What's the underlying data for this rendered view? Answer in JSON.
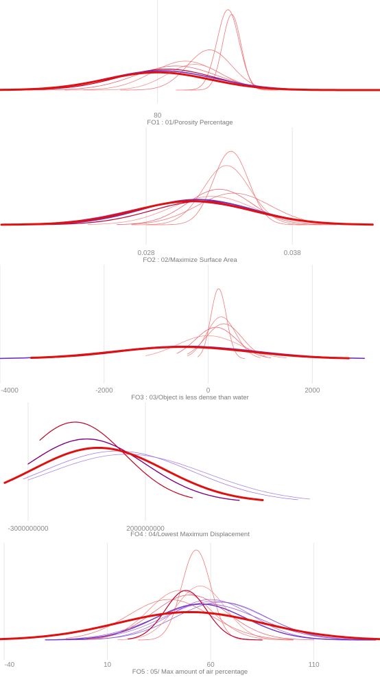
{
  "chart_data": [
    {
      "type": "line",
      "title": "FO1 : 01/Porosity Percentage",
      "ticks": [
        {
          "value": 80,
          "label": "80"
        }
      ],
      "xlim": [
        -5,
        200
      ],
      "grid": true,
      "series": [
        {
          "mean": 80,
          "sd": 28,
          "peak": 0.22,
          "lo": -5,
          "hi": 200,
          "color": "#e01010",
          "width": 3
        },
        {
          "mean": 82,
          "sd": 29,
          "peak": 0.24,
          "lo": -5,
          "hi": 200,
          "color": "#7030c0",
          "width": 1.6
        },
        {
          "mean": 85,
          "sd": 26,
          "peak": 0.26,
          "lo": 0,
          "hi": 195,
          "color": "#c00030",
          "width": 1.2
        },
        {
          "mean": 90,
          "sd": 22,
          "peak": 0.3,
          "lo": 10,
          "hi": 185,
          "color": "#e84a5a",
          "width": 0.8
        },
        {
          "mean": 95,
          "sd": 18,
          "peak": 0.36,
          "lo": 30,
          "hi": 170,
          "color": "#f07070",
          "width": 0.8
        },
        {
          "mean": 108,
          "sd": 12,
          "peak": 0.5,
          "lo": 60,
          "hi": 160,
          "color": "#f06060",
          "width": 0.8
        },
        {
          "mean": 118,
          "sd": 6,
          "peak": 1.0,
          "lo": 90,
          "hi": 145,
          "color": "#f05a5a",
          "width": 0.8
        },
        {
          "mean": 120,
          "sd": 5,
          "peak": 0.94,
          "lo": 95,
          "hi": 142,
          "color": "#ec6060",
          "width": 0.8
        },
        {
          "mean": 100,
          "sd": 15,
          "peak": 0.32,
          "lo": 40,
          "hi": 160,
          "color": "#f48080",
          "width": 0.8
        }
      ]
    },
    {
      "type": "line",
      "title": "FO2 : 02/Maximize Surface Area",
      "ticks": [
        {
          "value": 0.028,
          "label": "0.028"
        },
        {
          "value": 0.038,
          "label": "0.038"
        }
      ],
      "xlim": [
        0.018,
        0.044
      ],
      "grid": true,
      "series": [
        {
          "mean": 0.0312,
          "sd": 0.004,
          "peak": 0.3,
          "lo": 0.0181,
          "hi": 0.0435,
          "color": "#e01010",
          "width": 3
        },
        {
          "mean": 0.0315,
          "sd": 0.0038,
          "peak": 0.32,
          "lo": 0.0185,
          "hi": 0.043,
          "color": "#7030c0",
          "width": 1.8
        },
        {
          "mean": 0.031,
          "sd": 0.0042,
          "peak": 0.29,
          "lo": 0.0183,
          "hi": 0.043,
          "color": "#9040d0",
          "width": 1.0
        },
        {
          "mean": 0.032,
          "sd": 0.0036,
          "peak": 0.3,
          "lo": 0.019,
          "hi": 0.042,
          "color": "#c00030",
          "width": 1.2
        },
        {
          "mean": 0.0338,
          "sd": 0.0012,
          "peak": 0.93,
          "lo": 0.028,
          "hi": 0.039,
          "color": "#f06060",
          "width": 0.8
        },
        {
          "mean": 0.0335,
          "sd": 0.0016,
          "peak": 0.75,
          "lo": 0.027,
          "hi": 0.04,
          "color": "#f07070",
          "width": 0.8
        },
        {
          "mean": 0.033,
          "sd": 0.0022,
          "peak": 0.45,
          "lo": 0.026,
          "hi": 0.041,
          "color": "#e84a5a",
          "width": 0.8
        },
        {
          "mean": 0.0325,
          "sd": 0.0028,
          "peak": 0.36,
          "lo": 0.024,
          "hi": 0.042,
          "color": "#f48080",
          "width": 0.8
        },
        {
          "mean": 0.034,
          "sd": 0.0025,
          "peak": 0.4,
          "lo": 0.027,
          "hi": 0.041,
          "color": "#ec6060",
          "width": 0.8
        }
      ]
    },
    {
      "type": "line",
      "title": "FO3 : 03/Object is less dense than water",
      "ticks": [
        {
          "value": -4000,
          "label": "-4000"
        },
        {
          "value": -2000,
          "label": "-2000"
        },
        {
          "value": 0,
          "label": "0"
        },
        {
          "value": 2000,
          "label": "2000"
        }
      ],
      "xlim": [
        -4000,
        3300
      ],
      "grid": true,
      "series": [
        {
          "mean": -500,
          "sd": 1300,
          "peak": 0.17,
          "lo": -3400,
          "hi": 2700,
          "color": "#e01010",
          "width": 3
        },
        {
          "mean": -450,
          "sd": 1350,
          "peak": 0.18,
          "lo": -4000,
          "hi": 3000,
          "color": "#7030c0",
          "width": 1.6
        },
        {
          "mean": -400,
          "sd": 1200,
          "peak": 0.18,
          "lo": -3200,
          "hi": 2600,
          "color": "#c00030",
          "width": 1.0
        },
        {
          "mean": 200,
          "sd": 150,
          "peak": 1.0,
          "lo": -200,
          "hi": 700,
          "color": "#f06060",
          "width": 0.8
        },
        {
          "mean": 250,
          "sd": 280,
          "peak": 0.6,
          "lo": -400,
          "hi": 1000,
          "color": "#f07070",
          "width": 0.8
        },
        {
          "mean": 150,
          "sd": 400,
          "peak": 0.45,
          "lo": -600,
          "hi": 1200,
          "color": "#e84a5a",
          "width": 0.8
        },
        {
          "mean": 0,
          "sd": 600,
          "peak": 0.33,
          "lo": -1200,
          "hi": 1500,
          "color": "#f48080",
          "width": 0.8
        },
        {
          "mean": 300,
          "sd": 350,
          "peak": 0.5,
          "lo": -400,
          "hi": 1100,
          "color": "#ec6060",
          "width": 0.8
        }
      ]
    },
    {
      "type": "line",
      "title": "FO4 : 04/Lowest Maximum Displacement",
      "ticks": [
        {
          "value": -3000000000,
          "label": "-3000000000"
        },
        {
          "value": 2000000000,
          "label": "2000000000"
        }
      ],
      "xlim": [
        -4200000000,
        12000000000
      ],
      "grid": true,
      "series": [
        {
          "mean": 0,
          "sd": 2800000000,
          "peak": 0.68,
          "lo": -4000000000,
          "hi": 7000000000,
          "color": "#e01010",
          "width": 3
        },
        {
          "mean": -500000000,
          "sd": 2500000000,
          "peak": 0.79,
          "lo": -3000000000,
          "hi": 6000000000,
          "color": "#800080",
          "width": 1.4
        },
        {
          "mean": -1000000000,
          "sd": 2100000000,
          "peak": 1.0,
          "lo": -2500000000,
          "hi": 4000000000,
          "color": "#c00020",
          "width": 1.2
        },
        {
          "mean": 800000000,
          "sd": 3200000000,
          "peak": 0.64,
          "lo": -3200000000,
          "hi": 8500000000,
          "color": "#9060e0",
          "width": 0.8
        },
        {
          "mean": 1200000000,
          "sd": 3400000000,
          "peak": 0.6,
          "lo": -3000000000,
          "hi": 9000000000,
          "color": "#a070e0",
          "width": 0.8
        }
      ]
    },
    {
      "type": "line",
      "title": "FO5 : 05/ Max amount of air percentage",
      "ticks": [
        {
          "value": -40,
          "label": "-40"
        },
        {
          "value": 10,
          "label": "10"
        },
        {
          "value": 60,
          "label": "60"
        },
        {
          "value": 110,
          "label": "110"
        }
      ],
      "xlim": [
        -42,
        142
      ],
      "grid": true,
      "series": [
        {
          "mean": 50,
          "sd": 35,
          "peak": 0.31,
          "lo": -42,
          "hi": 142,
          "color": "#e01010",
          "width": 3
        },
        {
          "mean": 55,
          "sd": 22,
          "peak": 0.4,
          "lo": -20,
          "hi": 140,
          "color": "#7030c0",
          "width": 1.4
        },
        {
          "mean": 58,
          "sd": 25,
          "peak": 0.4,
          "lo": -15,
          "hi": 140,
          "color": "#8040c8",
          "width": 0.8
        },
        {
          "mean": 60,
          "sd": 20,
          "peak": 0.45,
          "lo": -10,
          "hi": 135,
          "color": "#9050d8",
          "width": 0.8
        },
        {
          "mean": 62,
          "sd": 24,
          "peak": 0.43,
          "lo": -10,
          "hi": 140,
          "color": "#a060e0",
          "width": 0.8
        },
        {
          "mean": 65,
          "sd": 22,
          "peak": 0.42,
          "lo": -5,
          "hi": 140,
          "color": "#7848c8",
          "width": 0.8
        },
        {
          "mean": 53,
          "sd": 7,
          "peak": 1.0,
          "lo": 25,
          "hi": 80,
          "color": "#f06060",
          "width": 0.8
        },
        {
          "mean": 45,
          "sd": 15,
          "peak": 0.55,
          "lo": 0,
          "hi": 100,
          "color": "#f07070",
          "width": 0.8
        },
        {
          "mean": 50,
          "sd": 18,
          "peak": 0.5,
          "lo": 0,
          "hi": 110,
          "color": "#e84a5a",
          "width": 0.8
        },
        {
          "mean": 55,
          "sd": 12,
          "peak": 0.6,
          "lo": 15,
          "hi": 100,
          "color": "#f48080",
          "width": 0.8
        },
        {
          "mean": 40,
          "sd": 20,
          "peak": 0.45,
          "lo": -10,
          "hi": 100,
          "color": "#ec6060",
          "width": 0.8
        },
        {
          "mean": 48,
          "sd": 10,
          "peak": 0.55,
          "lo": 20,
          "hi": 85,
          "color": "#c00030",
          "width": 1.2
        }
      ]
    }
  ]
}
